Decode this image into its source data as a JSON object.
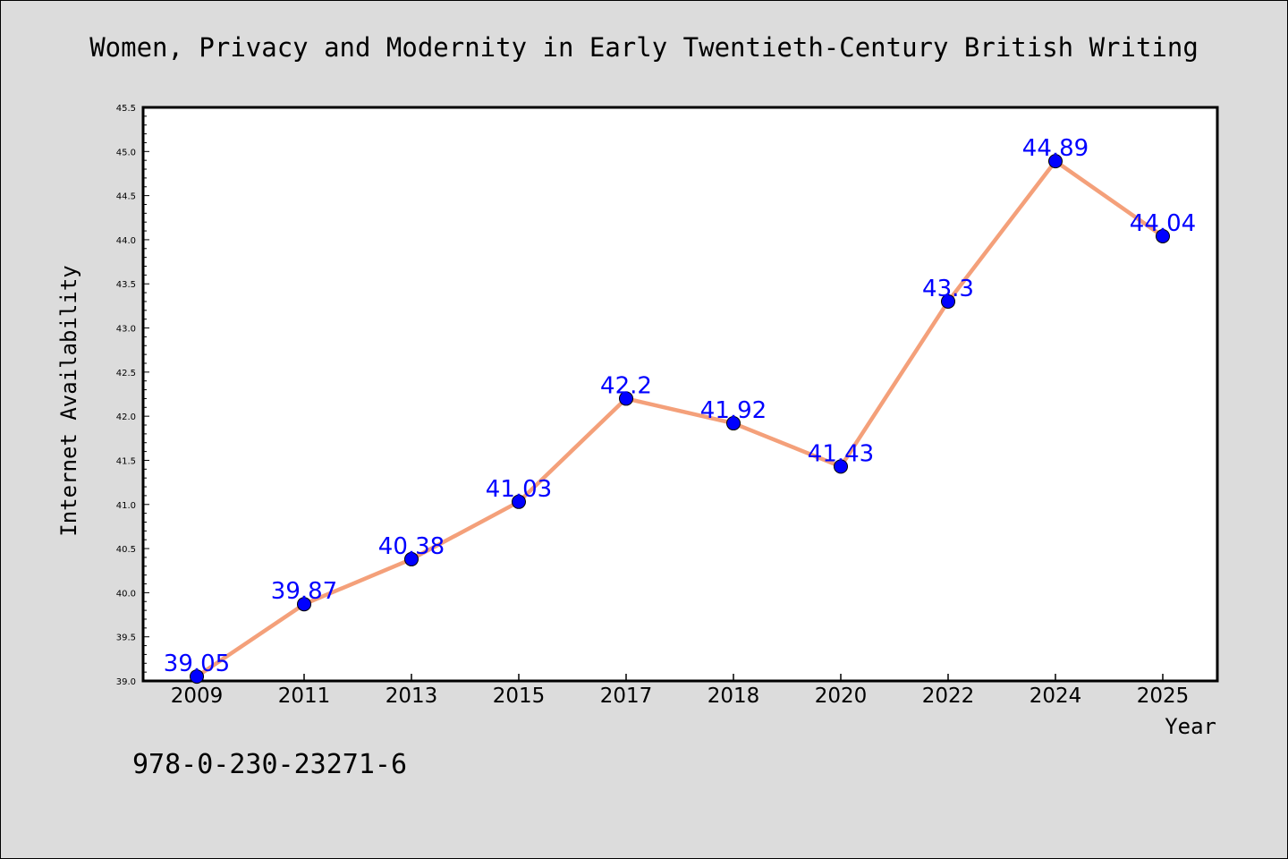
{
  "chart_data": {
    "type": "line",
    "title": "Women, Privacy and Modernity in Early Twentieth-Century British Writing",
    "xlabel": "Year",
    "ylabel": "Internet Availability",
    "categories": [
      "2009",
      "2011",
      "2013",
      "2015",
      "2017",
      "2018",
      "2020",
      "2022",
      "2024",
      "2025"
    ],
    "series": [
      {
        "values": [
          39.05,
          39.87,
          40.38,
          41.03,
          42.2,
          41.92,
          41.43,
          43.3,
          44.89,
          44.04
        ],
        "data_labels": [
          "39.05",
          "39.87",
          "40.38",
          "41.03",
          "42.2",
          "41.92",
          "41.43",
          "43.3",
          "44.89",
          "44.04"
        ]
      }
    ],
    "ylim": [
      39.0,
      45.5
    ],
    "yticks": [
      "39.0",
      "39.5",
      "40.0",
      "40.5",
      "41.0",
      "41.5",
      "42.0",
      "42.5",
      "43.0",
      "43.5",
      "44.0",
      "44.5",
      "45.0",
      "45.5"
    ],
    "line_color": "#f4a07a",
    "marker_color": "#0000ff",
    "label_color": "#0000ff",
    "grid": false,
    "legend": "none"
  },
  "footer": {
    "isbn": "978-0-230-23271-6"
  }
}
